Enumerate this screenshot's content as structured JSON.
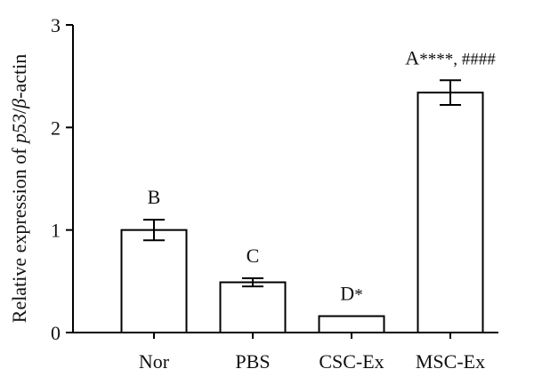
{
  "chart_data": {
    "type": "bar",
    "categories": [
      "Nor",
      "PBS",
      "CSC-Ex",
      "MSC-Ex"
    ],
    "values": [
      1.0,
      0.49,
      0.16,
      2.34
    ],
    "errors": [
      0.1,
      0.04,
      0.0,
      0.12
    ],
    "annotations": [
      {
        "letter": "B",
        "suffix": ""
      },
      {
        "letter": "C",
        "suffix": ""
      },
      {
        "letter": "D",
        "suffix": "*"
      },
      {
        "letter": "A",
        "suffix": "****, ####"
      }
    ],
    "ylabel": {
      "prefix": "Relative expression of ",
      "gene": "p53",
      "slash": "/",
      "greek": "β",
      "suffix": "-actin"
    },
    "ylim": [
      0,
      3
    ],
    "yticks": [
      0,
      1,
      2,
      3
    ],
    "grid": false,
    "bar_fill": "#ffffff",
    "stroke": "#000000"
  }
}
